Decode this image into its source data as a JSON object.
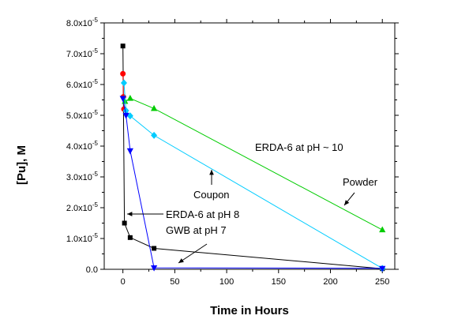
{
  "chart_data": {
    "type": "line",
    "title": "",
    "xlabel": "Time in Hours",
    "ylabel": "[Pu], M",
    "xlim": [
      -18,
      262
    ],
    "ylim": [
      0,
      8e-05
    ],
    "x_ticks": [
      0,
      50,
      100,
      150,
      200,
      250
    ],
    "y_ticks": [
      {
        "value": 0,
        "mantissa": "0.0",
        "exp": ""
      },
      {
        "value": 1e-05,
        "mantissa": "1.0x10",
        "exp": "-5"
      },
      {
        "value": 2e-05,
        "mantissa": "2.0x10",
        "exp": "-5"
      },
      {
        "value": 3e-05,
        "mantissa": "3.0x10",
        "exp": "-5"
      },
      {
        "value": 4e-05,
        "mantissa": "4.0x10",
        "exp": "-5"
      },
      {
        "value": 5e-05,
        "mantissa": "5.0x10",
        "exp": "-5"
      },
      {
        "value": 6e-05,
        "mantissa": "6.0x10",
        "exp": "-5"
      },
      {
        "value": 7e-05,
        "mantissa": "7.0x10",
        "exp": "-5"
      },
      {
        "value": 8e-05,
        "mantissa": "8.0x10",
        "exp": "-5"
      }
    ],
    "grid": false,
    "legend": "none",
    "series": [
      {
        "color": "#000000",
        "marker": "square",
        "points": [
          [
            0,
            7.25e-05
          ],
          [
            1.5,
            1.5e-05
          ],
          [
            7,
            1.03e-05
          ],
          [
            30,
            6.8e-06
          ],
          [
            250,
            2e-07
          ]
        ]
      },
      {
        "color": "#ff0000",
        "marker": "circle",
        "points": [
          [
            0,
            6.35e-05
          ],
          [
            0.5,
            5.6e-05
          ],
          [
            1,
            5.2e-05
          ]
        ]
      },
      {
        "color": "#00cc00",
        "marker": "triangle-up",
        "points": [
          [
            2,
            5.45e-05
          ],
          [
            7,
            5.55e-05
          ],
          [
            30,
            5.22e-05
          ],
          [
            250,
            1.28e-05
          ]
        ]
      },
      {
        "color": "#00ccff",
        "marker": "diamond",
        "points": [
          [
            1,
            6.05e-05
          ],
          [
            3,
            5.15e-05
          ],
          [
            7,
            4.98e-05
          ],
          [
            30,
            4.35e-05
          ],
          [
            250,
            3e-07
          ]
        ]
      },
      {
        "color": "#0000ff",
        "marker": "triangle-down",
        "points": [
          [
            0,
            5.55e-05
          ],
          [
            3,
            5e-05
          ],
          [
            7,
            3.85e-05
          ],
          [
            30,
            5e-07
          ],
          [
            250,
            3e-07
          ]
        ]
      }
    ],
    "annotations": [
      {
        "id": "erda10",
        "text": "ERDA-6 at pH ~ 10"
      },
      {
        "id": "powder",
        "text": "Powder"
      },
      {
        "id": "coupon",
        "text": "Coupon"
      },
      {
        "id": "erda8",
        "text": "ERDA-6 at pH 8"
      },
      {
        "id": "gwb7",
        "text": "GWB at pH 7"
      }
    ]
  }
}
